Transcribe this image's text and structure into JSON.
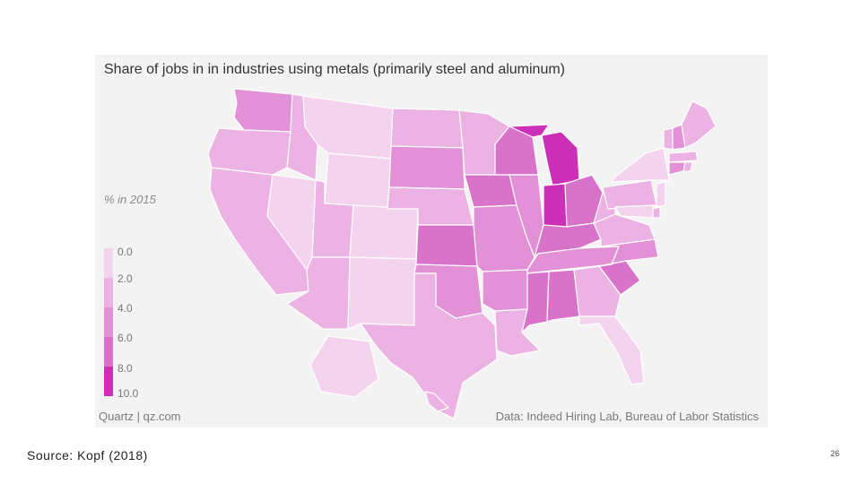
{
  "figure": {
    "title": "Share of jobs in in industries using metals (primarily steel and aluminum)",
    "legend_title": "% in 2015",
    "legend_bins": [
      {
        "label": "0.0",
        "color": "#f4d3ef"
      },
      {
        "label": "2.0",
        "color": "#ebb2e3"
      },
      {
        "label": "4.0",
        "color": "#e291d6"
      },
      {
        "label": "6.0",
        "color": "#d973ca"
      },
      {
        "label": "8.0",
        "color": "#d455c3"
      },
      {
        "label": "10.0",
        "color": "#cc2fb8"
      }
    ],
    "credit_left": "Quartz | qz.com",
    "credit_right": "Data: Indeed Hiring Lab, Bureau of Labor Statistics"
  },
  "map_data": {
    "type": "choropleth",
    "region": "United States",
    "value_unit": "%",
    "state_bins": {
      "WA": 4,
      "OR": 2,
      "CA": 2,
      "NV": 0,
      "ID": 2,
      "MT": 0,
      "WY": 0,
      "UT": 2,
      "AZ": 2,
      "CO": 0,
      "NM": 0,
      "ND": 2,
      "SD": 4,
      "NE": 2,
      "KS": 6,
      "OK": 4,
      "TX": 2,
      "MN": 2,
      "IA": 6,
      "MO": 4,
      "AR": 4,
      "LA": 2,
      "WI": 6,
      "IL": 4,
      "MI": 10,
      "IN": 10,
      "OH": 6,
      "KY": 6,
      "TN": 4,
      "MS": 6,
      "AL": 6,
      "GA": 2,
      "FL": 0,
      "SC": 6,
      "NC": 4,
      "VA": 2,
      "WV": 2,
      "PA": 2,
      "NY": 0,
      "VT": 2,
      "NH": 4,
      "ME": 2,
      "MA": 2,
      "CT": 4,
      "RI": 2,
      "NJ": 0,
      "DE": 2,
      "MD": 0,
      "AK": 0,
      "HI": 2
    }
  },
  "slide": {
    "source": "Source:  Kopf (2018)",
    "page_number": "26"
  }
}
